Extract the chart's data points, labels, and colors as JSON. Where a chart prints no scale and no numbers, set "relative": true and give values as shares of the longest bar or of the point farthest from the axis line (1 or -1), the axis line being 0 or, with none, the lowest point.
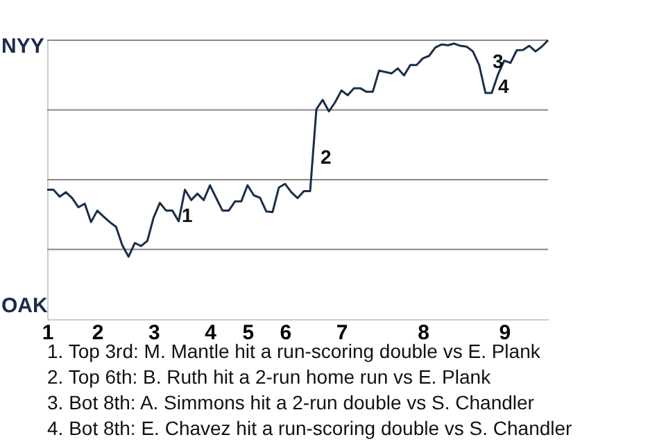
{
  "chart_data": {
    "type": "line",
    "categories": [
      "1",
      null,
      null,
      null,
      null,
      null,
      null,
      null,
      "2",
      null,
      null,
      null,
      null,
      null,
      null,
      null,
      null,
      "3",
      null,
      null,
      null,
      null,
      null,
      null,
      null,
      null,
      "4",
      null,
      null,
      null,
      null,
      null,
      "5",
      null,
      null,
      null,
      null,
      null,
      "6",
      null,
      null,
      null,
      null,
      null,
      null,
      null,
      null,
      "7",
      null,
      null,
      null,
      null,
      null,
      null,
      null,
      null,
      null,
      null,
      null,
      null,
      "8",
      null,
      null,
      null,
      null,
      null,
      null,
      null,
      null,
      null,
      null,
      null,
      null,
      "9",
      null,
      null,
      null,
      null,
      null,
      null,
      null
    ],
    "relative": true,
    "series": [
      {
        "color": "#1a2e4a",
        "values": [
          0.464,
          0.464,
          0.439,
          0.455,
          0.434,
          0.401,
          0.414,
          0.348,
          0.389,
          0.368,
          0.348,
          0.331,
          0.265,
          0.224,
          0.273,
          0.262,
          0.281,
          0.364,
          0.417,
          0.389,
          0.389,
          0.351,
          0.464,
          0.427,
          0.45,
          0.427,
          0.48,
          0.434,
          0.389,
          0.389,
          0.422,
          0.422,
          0.48,
          0.444,
          0.435,
          0.386,
          0.384,
          0.472,
          0.485,
          0.455,
          0.434,
          0.459,
          0.459,
          0.753,
          0.786,
          0.745,
          0.778,
          0.82,
          0.803,
          0.828,
          0.828,
          0.815,
          0.815,
          0.891,
          0.886,
          0.881,
          0.899,
          0.874,
          0.911,
          0.911,
          0.935,
          0.944,
          0.974,
          0.985,
          0.982,
          0.988,
          0.98,
          0.977,
          0.96,
          0.911,
          0.811,
          0.811,
          0.877,
          0.927,
          0.919,
          0.964,
          0.965,
          0.98,
          0.96,
          0.977,
          1.0
        ]
      }
    ],
    "grid": "y",
    "annotations": [
      "NYY",
      "OAK",
      "1",
      "2",
      "3",
      "4",
      "1. Top 3rd: M. Mantle hit a run-scoring double vs E. Plank",
      "2. Top 6th: B. Ruth hit a 2-run home run vs E. Plank",
      "3. Bot 8th: A. Simmons hit a 2-run double vs S. Chandler",
      "4. Bot 8th: E. Chavez hit a run-scoring double vs S. Chandler"
    ]
  }
}
